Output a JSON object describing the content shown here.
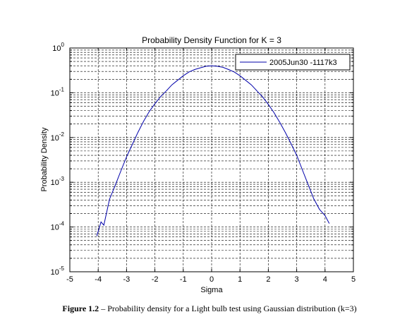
{
  "chart_data": {
    "type": "line",
    "title": "Probability Density Function for K = 3",
    "xlabel": "Sigma",
    "ylabel": "Probability Density",
    "xlim": [
      -5,
      5
    ],
    "ylim": [
      1e-05,
      1
    ],
    "yscale": "log",
    "grid": true,
    "legend_position": "top-right",
    "x_ticks": [
      "-5",
      "-4",
      "-3",
      "-2",
      "-1",
      "0",
      "1",
      "2",
      "3",
      "4",
      "5"
    ],
    "y_ticks": [
      {
        "base": "10",
        "exp": "-5"
      },
      {
        "base": "10",
        "exp": "-4"
      },
      {
        "base": "10",
        "exp": "-3"
      },
      {
        "base": "10",
        "exp": "-2"
      },
      {
        "base": "10",
        "exp": "-1"
      },
      {
        "base": "10",
        "exp": "0"
      }
    ],
    "series": [
      {
        "name": "2005Jun30 -1117k3",
        "color": "#0000aa",
        "x": [
          -4.05,
          -3.9,
          -3.8,
          -3.6,
          -3.4,
          -3.2,
          -3.0,
          -2.8,
          -2.6,
          -2.4,
          -2.2,
          -2.0,
          -1.8,
          -1.6,
          -1.4,
          -1.2,
          -1.0,
          -0.8,
          -0.6,
          -0.4,
          -0.2,
          0.0,
          0.2,
          0.4,
          0.6,
          0.8,
          1.0,
          1.2,
          1.4,
          1.6,
          1.8,
          2.0,
          2.2,
          2.4,
          2.6,
          2.8,
          3.0,
          3.2,
          3.4,
          3.6,
          3.8,
          4.0,
          4.15
        ],
        "y": [
          6.3e-05,
          0.00013,
          0.00011,
          0.00042,
          0.00085,
          0.0018,
          0.0037,
          0.0069,
          0.013,
          0.023,
          0.038,
          0.057,
          0.082,
          0.11,
          0.15,
          0.19,
          0.24,
          0.29,
          0.33,
          0.36,
          0.39,
          0.4,
          0.39,
          0.37,
          0.33,
          0.29,
          0.24,
          0.19,
          0.15,
          0.11,
          0.08,
          0.055,
          0.036,
          0.022,
          0.013,
          0.0073,
          0.004,
          0.0019,
          0.0009,
          0.00043,
          0.00025,
          0.00018,
          0.00012
        ]
      }
    ]
  },
  "caption": {
    "label": "Figure 1.2",
    "text": " – Probability density for a Light bulb test using Gaussian distribution (k=3)"
  }
}
